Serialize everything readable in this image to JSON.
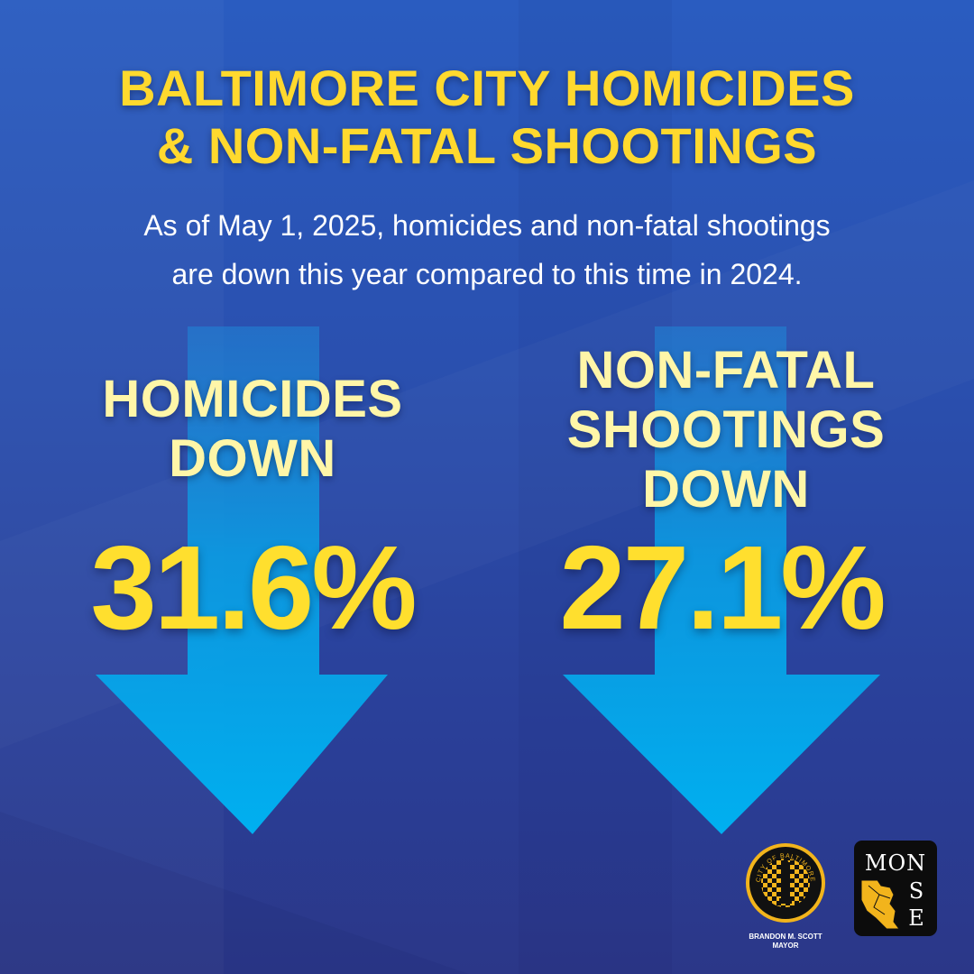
{
  "title": {
    "line1": "BALTIMORE CITY HOMICIDES",
    "line2": "& NON-FATAL SHOOTINGS"
  },
  "subtitle": {
    "line1": "As of May 1, 2025, homicides and non-fatal shootings",
    "line2": "are down this year compared to this time in 2024."
  },
  "stats": [
    {
      "label_lines": [
        "HOMICIDES",
        "DOWN"
      ],
      "value": "31.6%",
      "percent_change": -31.6
    },
    {
      "label_lines": [
        "NON-FATAL",
        "SHOOTINGS",
        "DOWN"
      ],
      "value": "27.1%",
      "percent_change": -27.1
    }
  ],
  "footer": {
    "mayor_name": "BRANDON M. SCOTT",
    "mayor_title": "MAYOR",
    "seal_text": "CITY OF BALTIMORE",
    "monse_logo": {
      "top": "MON",
      "s": "S",
      "e": "E"
    }
  },
  "colors": {
    "background_top": "#2a5cc0",
    "background_bottom": "#2b3788",
    "title_yellow": "#ffd92e",
    "label_yellow": "#fff6a8",
    "arrow_blue": "#00aeef"
  }
}
